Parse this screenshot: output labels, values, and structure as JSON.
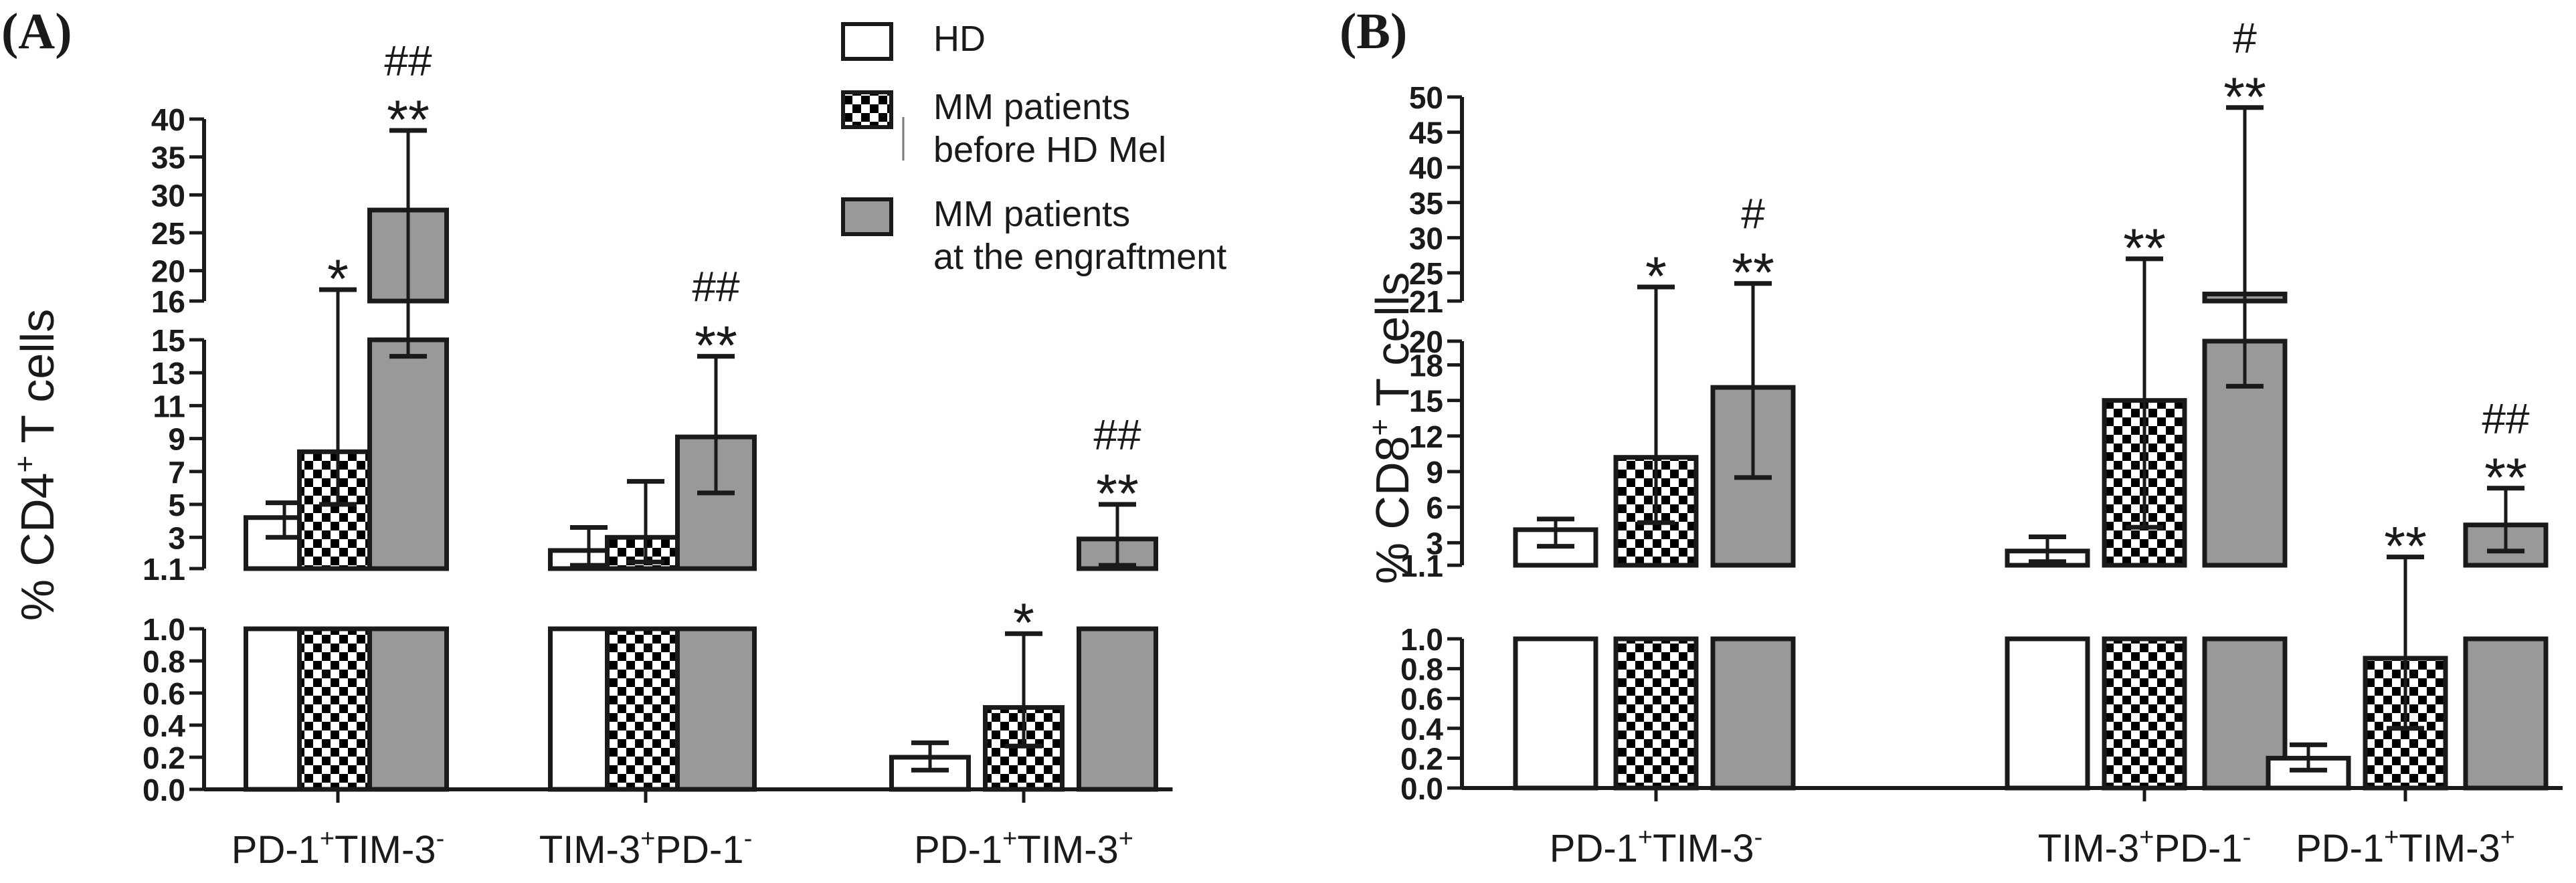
{
  "legend": {
    "items": [
      {
        "key": "hd",
        "label_lines": [
          "HD"
        ]
      },
      {
        "key": "mm_before",
        "label_lines": [
          "MM patients",
          "before HD Mel"
        ]
      },
      {
        "key": "mm_after",
        "label_lines": [
          "MM patients",
          "at the engraftment"
        ]
      }
    ],
    "colors": {
      "hd": "#ffffff",
      "mm_before": "#000000",
      "mm_after": "#999999",
      "stroke": "#1a1a1a"
    }
  },
  "chart_data": [
    {
      "type": "bar",
      "panel": "(A)",
      "ylabel": "% CD4",
      "ylabel_sup": "+",
      "ylabel_tail": " T cells",
      "axis_segments": {
        "lower": {
          "range": [
            0,
            1.0
          ],
          "ticks": [
            "0.0",
            "0.2",
            "0.4",
            "0.6",
            "0.8",
            "1.0"
          ]
        },
        "middle": {
          "range": [
            1.1,
            15
          ],
          "ticks": [
            "1.1",
            "3",
            "5",
            "7",
            "9",
            "11",
            "13",
            "15"
          ]
        },
        "upper": {
          "range": [
            16,
            40
          ],
          "ticks": [
            "16",
            "20",
            "25",
            "30",
            "35",
            "40"
          ]
        }
      },
      "groups": [
        {
          "category": [
            "PD-1",
            "+",
            "TIM-3",
            "-"
          ],
          "bars": [
            {
              "series": "hd",
              "value": 4.2,
              "err": [
                3.0,
                5.1
              ],
              "sig": [],
              "sig_cap": null
            },
            {
              "series": "mm_before",
              "value": 8.2,
              "err": [
                5.0,
                17.5
              ],
              "sig": [
                "*"
              ],
              "sig_cap": null
            },
            {
              "series": "mm_after",
              "value": 28,
              "err": [
                14,
                38.5
              ],
              "sig": [
                "##",
                "**"
              ],
              "sig_cap": null
            }
          ]
        },
        {
          "category": [
            "TIM-3",
            "+",
            "PD-1",
            "-"
          ],
          "bars": [
            {
              "series": "hd",
              "value": 2.2,
              "err": [
                1.3,
                3.6
              ],
              "sig": [],
              "sig_cap": null
            },
            {
              "series": "mm_before",
              "value": 3.0,
              "err": [
                1.5,
                6.4
              ],
              "sig": [],
              "sig_cap": null
            },
            {
              "series": "mm_after",
              "value": 9.1,
              "err": [
                5.7,
                14
              ],
              "sig": [
                "##",
                "**"
              ],
              "sig_cap": null
            }
          ]
        },
        {
          "category": [
            "PD-1",
            "+",
            "TIM-3",
            "+"
          ],
          "bars": [
            {
              "series": "hd",
              "value": 0.2,
              "err": [
                0.12,
                0.29
              ],
              "sig": [],
              "sig_cap": null
            },
            {
              "series": "mm_before",
              "value": 0.51,
              "err": [
                0.27,
                0.97
              ],
              "sig": [
                "*"
              ],
              "sig_cap": null
            },
            {
              "series": "mm_after",
              "value": 2.9,
              "err": [
                1.3,
                5.0
              ],
              "sig": [
                "##",
                "**"
              ],
              "sig_cap": null
            }
          ]
        }
      ]
    },
    {
      "type": "bar",
      "panel": "(B)",
      "ylabel": "% CD8",
      "ylabel_sup": "+",
      "ylabel_tail": " T cells",
      "axis_segments": {
        "lower": {
          "range": [
            0,
            1.0
          ],
          "ticks": [
            "0.0",
            "0.2",
            "0.4",
            "0.6",
            "0.8",
            "1.0"
          ]
        },
        "middle": {
          "range": [
            1.1,
            20
          ],
          "ticks": [
            "1.1",
            "3",
            "6",
            "9",
            "12",
            "15",
            "18",
            "20"
          ]
        },
        "upper": {
          "range": [
            21,
            50
          ],
          "ticks": [
            "21",
            "25",
            "30",
            "35",
            "40",
            "45",
            "50"
          ]
        }
      },
      "groups": [
        {
          "category": [
            "PD-1",
            "+",
            "TIM-3",
            "-"
          ],
          "bars": [
            {
              "series": "hd",
              "value": 4.1,
              "err": [
                2.7,
                5.0
              ],
              "sig": [],
              "sig_cap": null
            },
            {
              "series": "mm_before",
              "value": 10.2,
              "err": [
                4.7,
                23
              ],
              "sig": [
                "*"
              ],
              "sig_cap": null
            },
            {
              "series": "mm_after",
              "value": 16.1,
              "err": [
                8.5,
                23.5
              ],
              "sig": [
                "#",
                "**"
              ],
              "sig_cap": null
            }
          ]
        },
        {
          "category": [
            "TIM-3",
            "+",
            "PD-1",
            "-"
          ],
          "bars": [
            {
              "series": "hd",
              "value": 2.3,
              "err": [
                1.4,
                3.5
              ],
              "sig": [],
              "sig_cap": null
            },
            {
              "series": "mm_before",
              "value": 15,
              "err": [
                4.3,
                27
              ],
              "sig": [
                "**"
              ],
              "sig_cap": null
            },
            {
              "series": "mm_after",
              "value": 22,
              "err": [
                16.2,
                48.5
              ],
              "sig": [
                "#",
                "**"
              ],
              "sig_cap": null
            }
          ]
        },
        {
          "category": [
            "PD-1",
            "+",
            "TIM-3",
            "+"
          ],
          "bars": [
            {
              "series": "hd",
              "value": 0.2,
              "err": [
                0.12,
                0.29
              ],
              "sig": [],
              "sig_cap": null
            },
            {
              "series": "mm_before",
              "value": 0.87,
              "err": [
                0.4,
                1.8
              ],
              "sig": [
                "**"
              ],
              "sig_cap": 1.8
            },
            {
              "series": "mm_after",
              "value": 4.5,
              "err": [
                2.3,
                7.6
              ],
              "sig": [
                "##",
                "**"
              ],
              "sig_cap": null
            }
          ]
        }
      ]
    }
  ]
}
